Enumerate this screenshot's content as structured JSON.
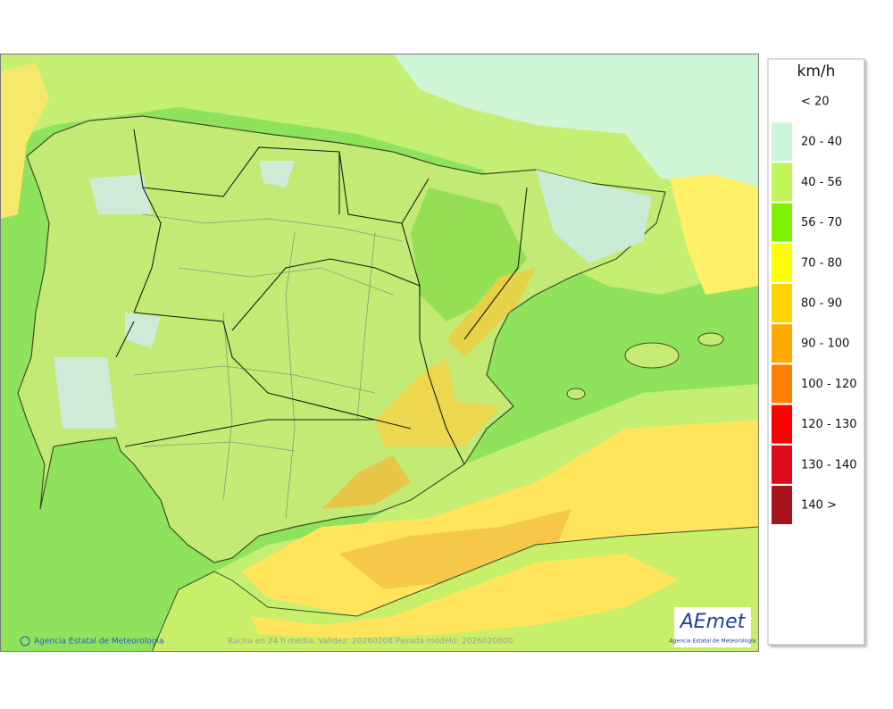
{
  "map": {
    "caption": "Racha en 24 h media. Validez: 20260208 Pasada modelo: 2026020600",
    "credit": "Agencia Estatal de Meteorología"
  },
  "legend": {
    "title": "km/h",
    "items": [
      {
        "label": "< 20"
      },
      {
        "label": "20 - 40",
        "color": "#ccf7d8"
      },
      {
        "label": "40 - 56",
        "color": "#c2f55a"
      },
      {
        "label": "56 - 70",
        "color": "#7ef000"
      },
      {
        "label": "70 - 80",
        "color": "#ffff00"
      },
      {
        "label": "80 - 90",
        "color": "#ffd400"
      },
      {
        "label": "90 - 100",
        "color": "#ffaa00"
      },
      {
        "label": "100 - 120",
        "color": "#ff8000"
      },
      {
        "label": "120 - 130",
        "color": "#ff0000"
      },
      {
        "label": "130 - 140",
        "color": "#dc0a1a"
      },
      {
        "label": "140 >",
        "color": "#a8141e"
      }
    ]
  },
  "logo": {
    "name": "AEmet",
    "subtitle": "Agencia Estatal de Meteorología"
  }
}
